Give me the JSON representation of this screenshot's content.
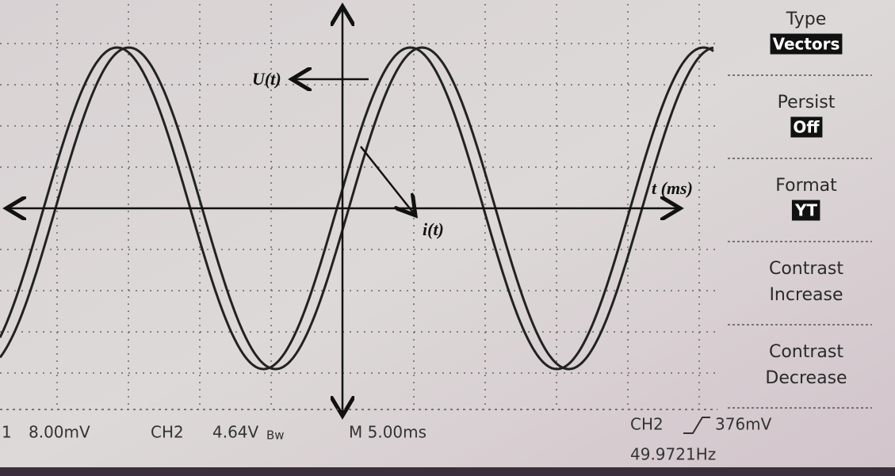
{
  "annotations": {
    "voltage": "U(t)",
    "current": "i(t)",
    "time_axis": "t (ms)"
  },
  "menu": [
    {
      "title": "Type",
      "value": "Vectors"
    },
    {
      "title": "Persist",
      "value": "Off"
    },
    {
      "title": "Format",
      "value": "YT"
    },
    {
      "title": "Contrast",
      "subtitle": "Increase"
    },
    {
      "title": "Contrast",
      "subtitle": "Decrease"
    }
  ],
  "status": {
    "ch1": "1",
    "ch1_scale": "8.00mV",
    "ch2": "CH2",
    "ch2_scale": "4.64V",
    "bandwidth": "Bw",
    "timebase": "M 5.00ms",
    "trigger_source": "CH2",
    "trigger_level": "376mV",
    "frequency": "49.9721Hz"
  }
}
